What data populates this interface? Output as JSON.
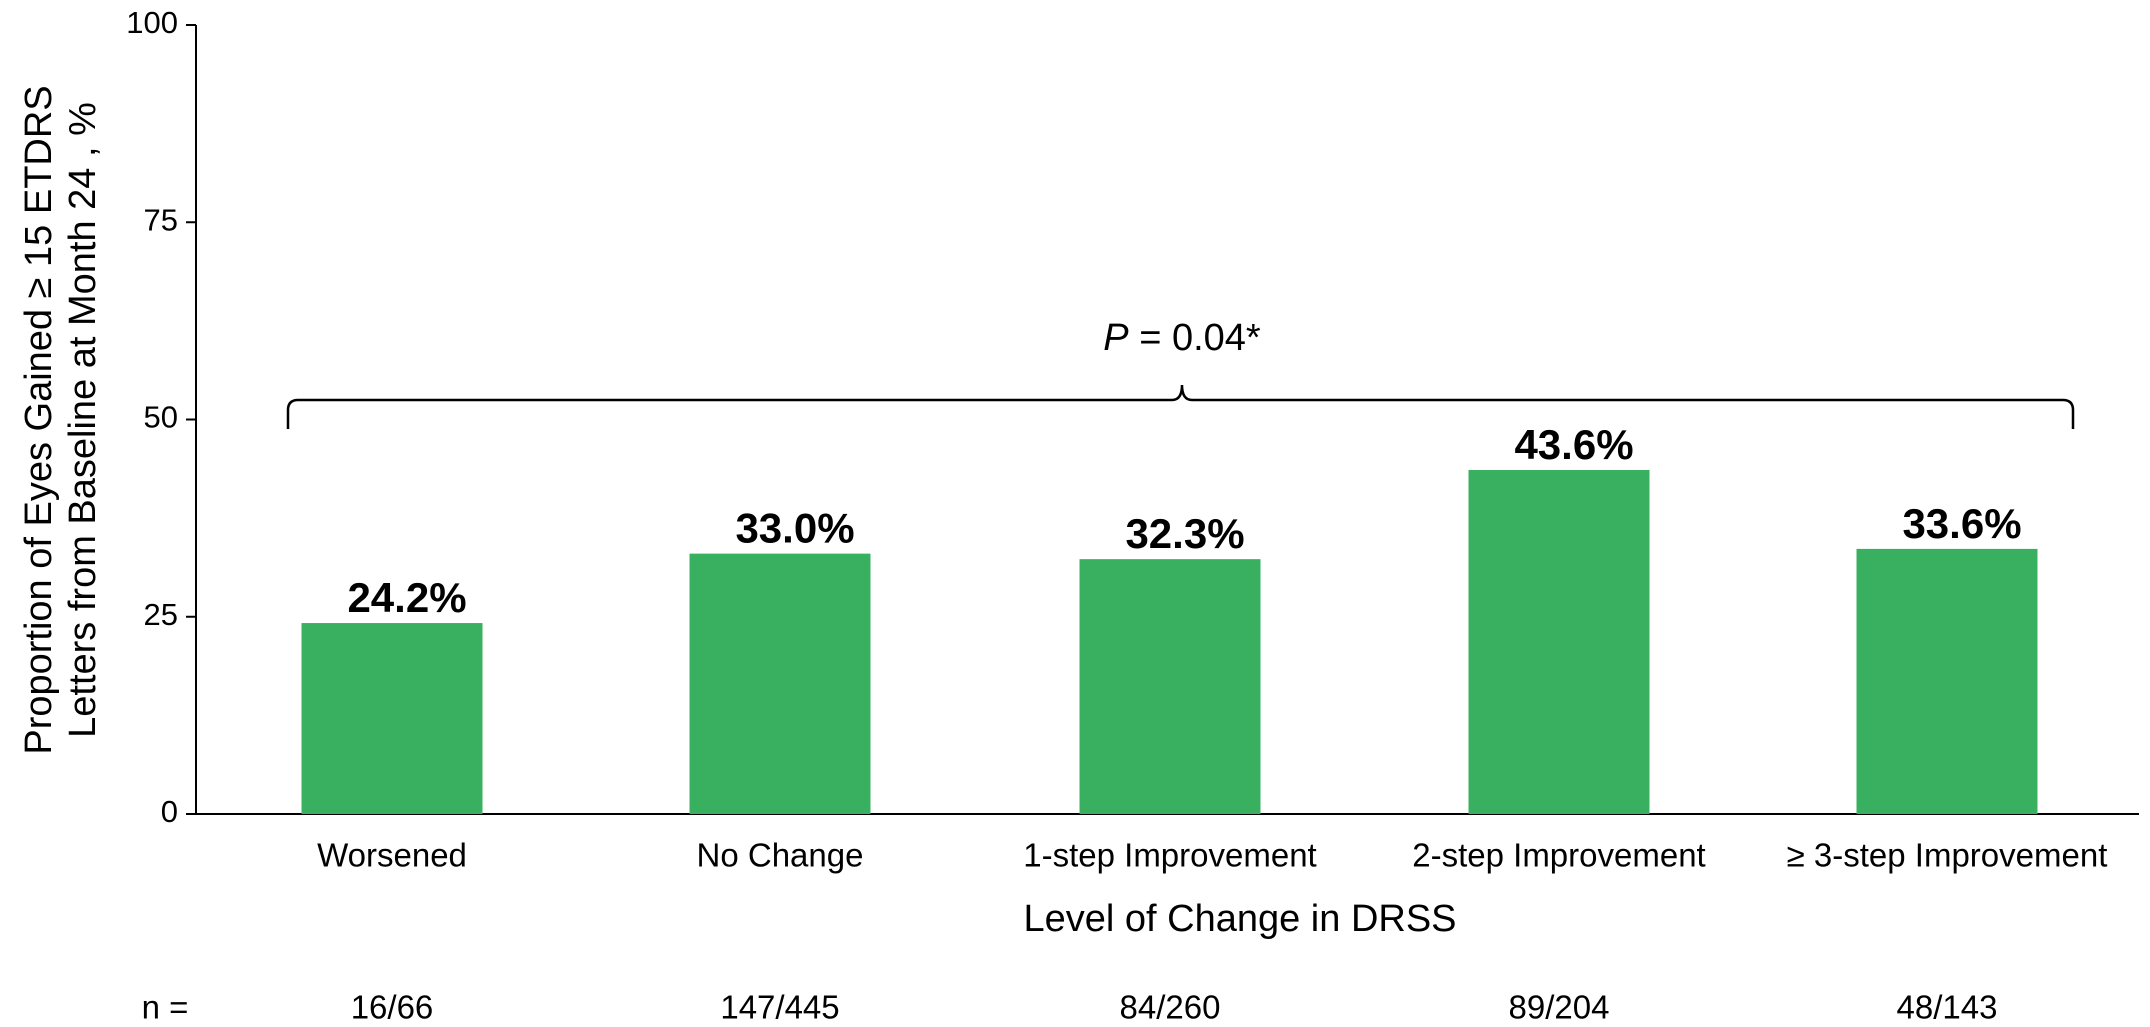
{
  "chart_data": {
    "type": "bar",
    "categories": [
      "Worsened",
      "No Change",
      "1-step Improvement",
      "2-step Improvement",
      "≥ 3-step Improvement"
    ],
    "values": [
      24.2,
      33.0,
      32.3,
      43.6,
      33.6
    ],
    "value_labels": [
      "24.2%",
      "33.0%",
      "32.3%",
      "43.6%",
      "33.6%"
    ],
    "color": "#38b060",
    "ylim": [
      0,
      100
    ],
    "yticks": [
      0,
      25,
      50,
      75,
      100
    ],
    "grid": false,
    "x_label": "Level of Change in DRSS",
    "y_label": [
      "Proportion of Eyes Gained ≥ 15 ETDRS",
      "Letters from Baseline at Month 24 , %"
    ],
    "annotation": {
      "italic": "P",
      "text": " = 0.04*"
    },
    "n_label": "n   =",
    "n_values": [
      "16/66",
      "147/445",
      "84/260",
      "89/204",
      "48/143"
    ]
  }
}
